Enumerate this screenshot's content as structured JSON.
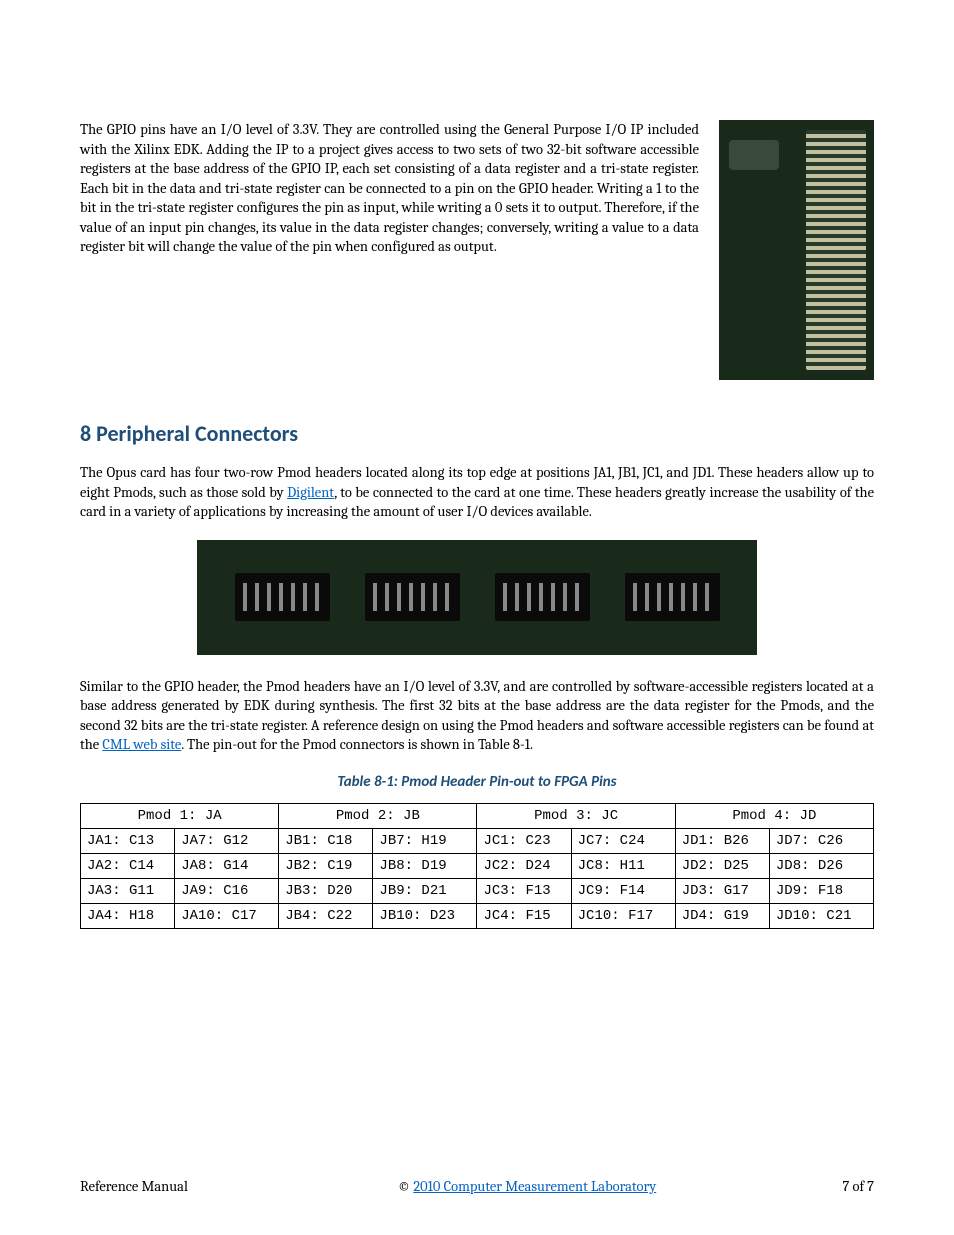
{
  "paragraphs": {
    "gpio": "The GPIO pins have an I/O level of 3.3V.  They are controlled using the General Purpose I/O IP included with the Xilinx EDK.  Adding the IP to a project gives access to two sets of two 32-bit software accessible registers at the base address of the GPIO IP, each set consisting of a data register and a tri-state register.  Each bit in the data and tri-state register can be connected to a pin on the GPIO header.  Writing a 1 to the bit in the tri-state register configures the pin as input, while writing a 0 sets it to output.  Therefore, if the value of an input pin changes, its value in the data register changes; conversely, writing a value to a data register bit will change the value of the pin when configured as output.",
    "pmod_intro_pre": "The Opus card has four two-row Pmod headers located along its top edge at positions JA1, JB1, JC1, and JD1.  These headers allow up to eight Pmods, such  as those sold by ",
    "pmod_intro_link": "Digilent",
    "pmod_intro_post": ", to be connected to the card at one time.  These headers greatly increase the usability of the card in a variety of applications by increasing the amount of user I/O devices available.",
    "pmod_detail_pre": "Similar to the GPIO header, the Pmod headers have an I/O level of 3.3V, and are controlled by software-accessible registers located at a base address generated by EDK during synthesis.  The first 32 bits at the base address are the data register for the Pmods, and the second 32 bits are the tri-state register.  A reference design on using the Pmod headers and software accessible registers can be found at the ",
    "pmod_detail_link": "CML web site",
    "pmod_detail_post": ".  The pin-out for the Pmod connectors is shown in Table 8-1."
  },
  "heading": "8 Peripheral Connectors",
  "table": {
    "caption": "Table 8-1: Pmod Header Pin-out to FPGA Pins",
    "headers": [
      "Pmod 1: JA",
      "Pmod 2: JB",
      "Pmod 3: JC",
      "Pmod 4: JD"
    ],
    "rows": [
      [
        "JA1: C13",
        "JA7: G12",
        "JB1: C18",
        "JB7: H19",
        "JC1: C23",
        "JC7: C24",
        "JD1: B26",
        "JD7: C26"
      ],
      [
        "JA2: C14",
        "JA8: G14",
        "JB2: C19",
        "JB8: D19",
        "JC2: D24",
        "JC8: H11",
        "JD2: D25",
        "JD8: D26"
      ],
      [
        "JA3: G11",
        "JA9: C16",
        "JB3: D20",
        "JB9: D21",
        "JC3: F13",
        "JC9: F14",
        "JD3: G17",
        "JD9: F18"
      ],
      [
        "JA4: H18",
        "JA10: C17",
        "JB4: C22",
        "JB10: D23",
        "JC4: F15",
        "JC10: F17",
        "JD4: G19",
        "JD10: C21"
      ]
    ]
  },
  "footer": {
    "left": "Reference Manual",
    "center_prefix": "© ",
    "center_link": "2010 Computer Measurement Laboratory",
    "right": "7 of 7"
  },
  "colors": {
    "heading": "#1f4e79",
    "link": "#0563c1",
    "body": "#000000",
    "bg": "#ffffff",
    "pcb": "#1a2a1a"
  }
}
